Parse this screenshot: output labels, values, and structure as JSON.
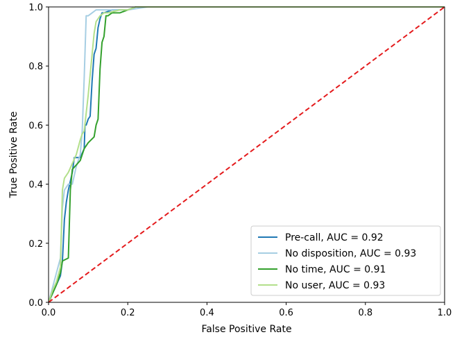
{
  "chart_data": {
    "type": "line",
    "title": "",
    "xlabel": "False Positive Rate",
    "ylabel": "True Positive Rate",
    "xlim": [
      0.0,
      1.0
    ],
    "ylim": [
      0.0,
      1.0
    ],
    "xticks": [
      "0.0",
      "0.2",
      "0.4",
      "0.6",
      "0.8",
      "1.0"
    ],
    "yticks": [
      "0.0",
      "0.2",
      "0.4",
      "0.6",
      "0.8",
      "1.0"
    ],
    "grid": false,
    "legend_position": "lower-right",
    "series": [
      {
        "name": "Pre-call, AUC = 0.92",
        "color": "#1f78b4",
        "x": [
          0.0,
          0.01,
          0.02,
          0.03,
          0.035,
          0.04,
          0.045,
          0.05,
          0.06,
          0.065,
          0.07,
          0.075,
          0.08,
          0.09,
          0.092,
          0.095,
          0.1,
          0.105,
          0.11,
          0.115,
          0.12,
          0.125,
          0.13,
          0.135,
          0.14,
          0.16,
          0.2,
          0.22,
          0.25,
          1.0
        ],
        "y": [
          0.0,
          0.03,
          0.06,
          0.09,
          0.14,
          0.28,
          0.34,
          0.38,
          0.44,
          0.49,
          0.49,
          0.49,
          0.49,
          0.52,
          0.6,
          0.6,
          0.62,
          0.63,
          0.75,
          0.84,
          0.86,
          0.93,
          0.96,
          0.98,
          0.98,
          0.99,
          0.99,
          1.0,
          1.0,
          1.0
        ]
      },
      {
        "name": "No disposition, AUC = 0.93",
        "color": "#a6cee3",
        "x": [
          0.0,
          0.01,
          0.02,
          0.03,
          0.035,
          0.04,
          0.05,
          0.06,
          0.065,
          0.07,
          0.075,
          0.08,
          0.085,
          0.09,
          0.095,
          0.1,
          0.11,
          0.12,
          0.13,
          0.2,
          0.25,
          1.0
        ],
        "y": [
          0.0,
          0.05,
          0.1,
          0.15,
          0.32,
          0.38,
          0.4,
          0.4,
          0.43,
          0.46,
          0.48,
          0.5,
          0.58,
          0.76,
          0.97,
          0.97,
          0.98,
          0.99,
          0.99,
          0.99,
          1.0,
          1.0
        ]
      },
      {
        "name": "No time, AUC = 0.91",
        "color": "#33a02c",
        "x": [
          0.0,
          0.02,
          0.03,
          0.035,
          0.05,
          0.055,
          0.06,
          0.08,
          0.09,
          0.1,
          0.115,
          0.12,
          0.125,
          0.13,
          0.135,
          0.14,
          0.145,
          0.15,
          0.16,
          0.18,
          0.2,
          0.22,
          0.25,
          1.0
        ],
        "y": [
          0.0,
          0.06,
          0.1,
          0.14,
          0.15,
          0.38,
          0.45,
          0.48,
          0.52,
          0.54,
          0.56,
          0.6,
          0.62,
          0.79,
          0.88,
          0.9,
          0.97,
          0.97,
          0.98,
          0.98,
          0.99,
          1.0,
          1.0,
          1.0
        ]
      },
      {
        "name": "No user, AUC = 0.93",
        "color": "#b2df8a",
        "x": [
          0.0,
          0.01,
          0.02,
          0.03,
          0.035,
          0.04,
          0.05,
          0.06,
          0.07,
          0.08,
          0.085,
          0.09,
          0.1,
          0.11,
          0.115,
          0.12,
          0.13,
          0.14,
          0.15,
          0.18,
          0.2,
          0.22,
          0.25,
          1.0
        ],
        "y": [
          0.0,
          0.04,
          0.07,
          0.12,
          0.38,
          0.42,
          0.44,
          0.47,
          0.5,
          0.55,
          0.57,
          0.58,
          0.7,
          0.84,
          0.91,
          0.95,
          0.97,
          0.98,
          0.98,
          0.99,
          0.99,
          1.0,
          1.0,
          1.0
        ]
      }
    ],
    "reference_line": {
      "color": "#e41a1c",
      "x": [
        0.0,
        1.0
      ],
      "y": [
        0.0,
        1.0
      ],
      "style": "dashed"
    }
  }
}
